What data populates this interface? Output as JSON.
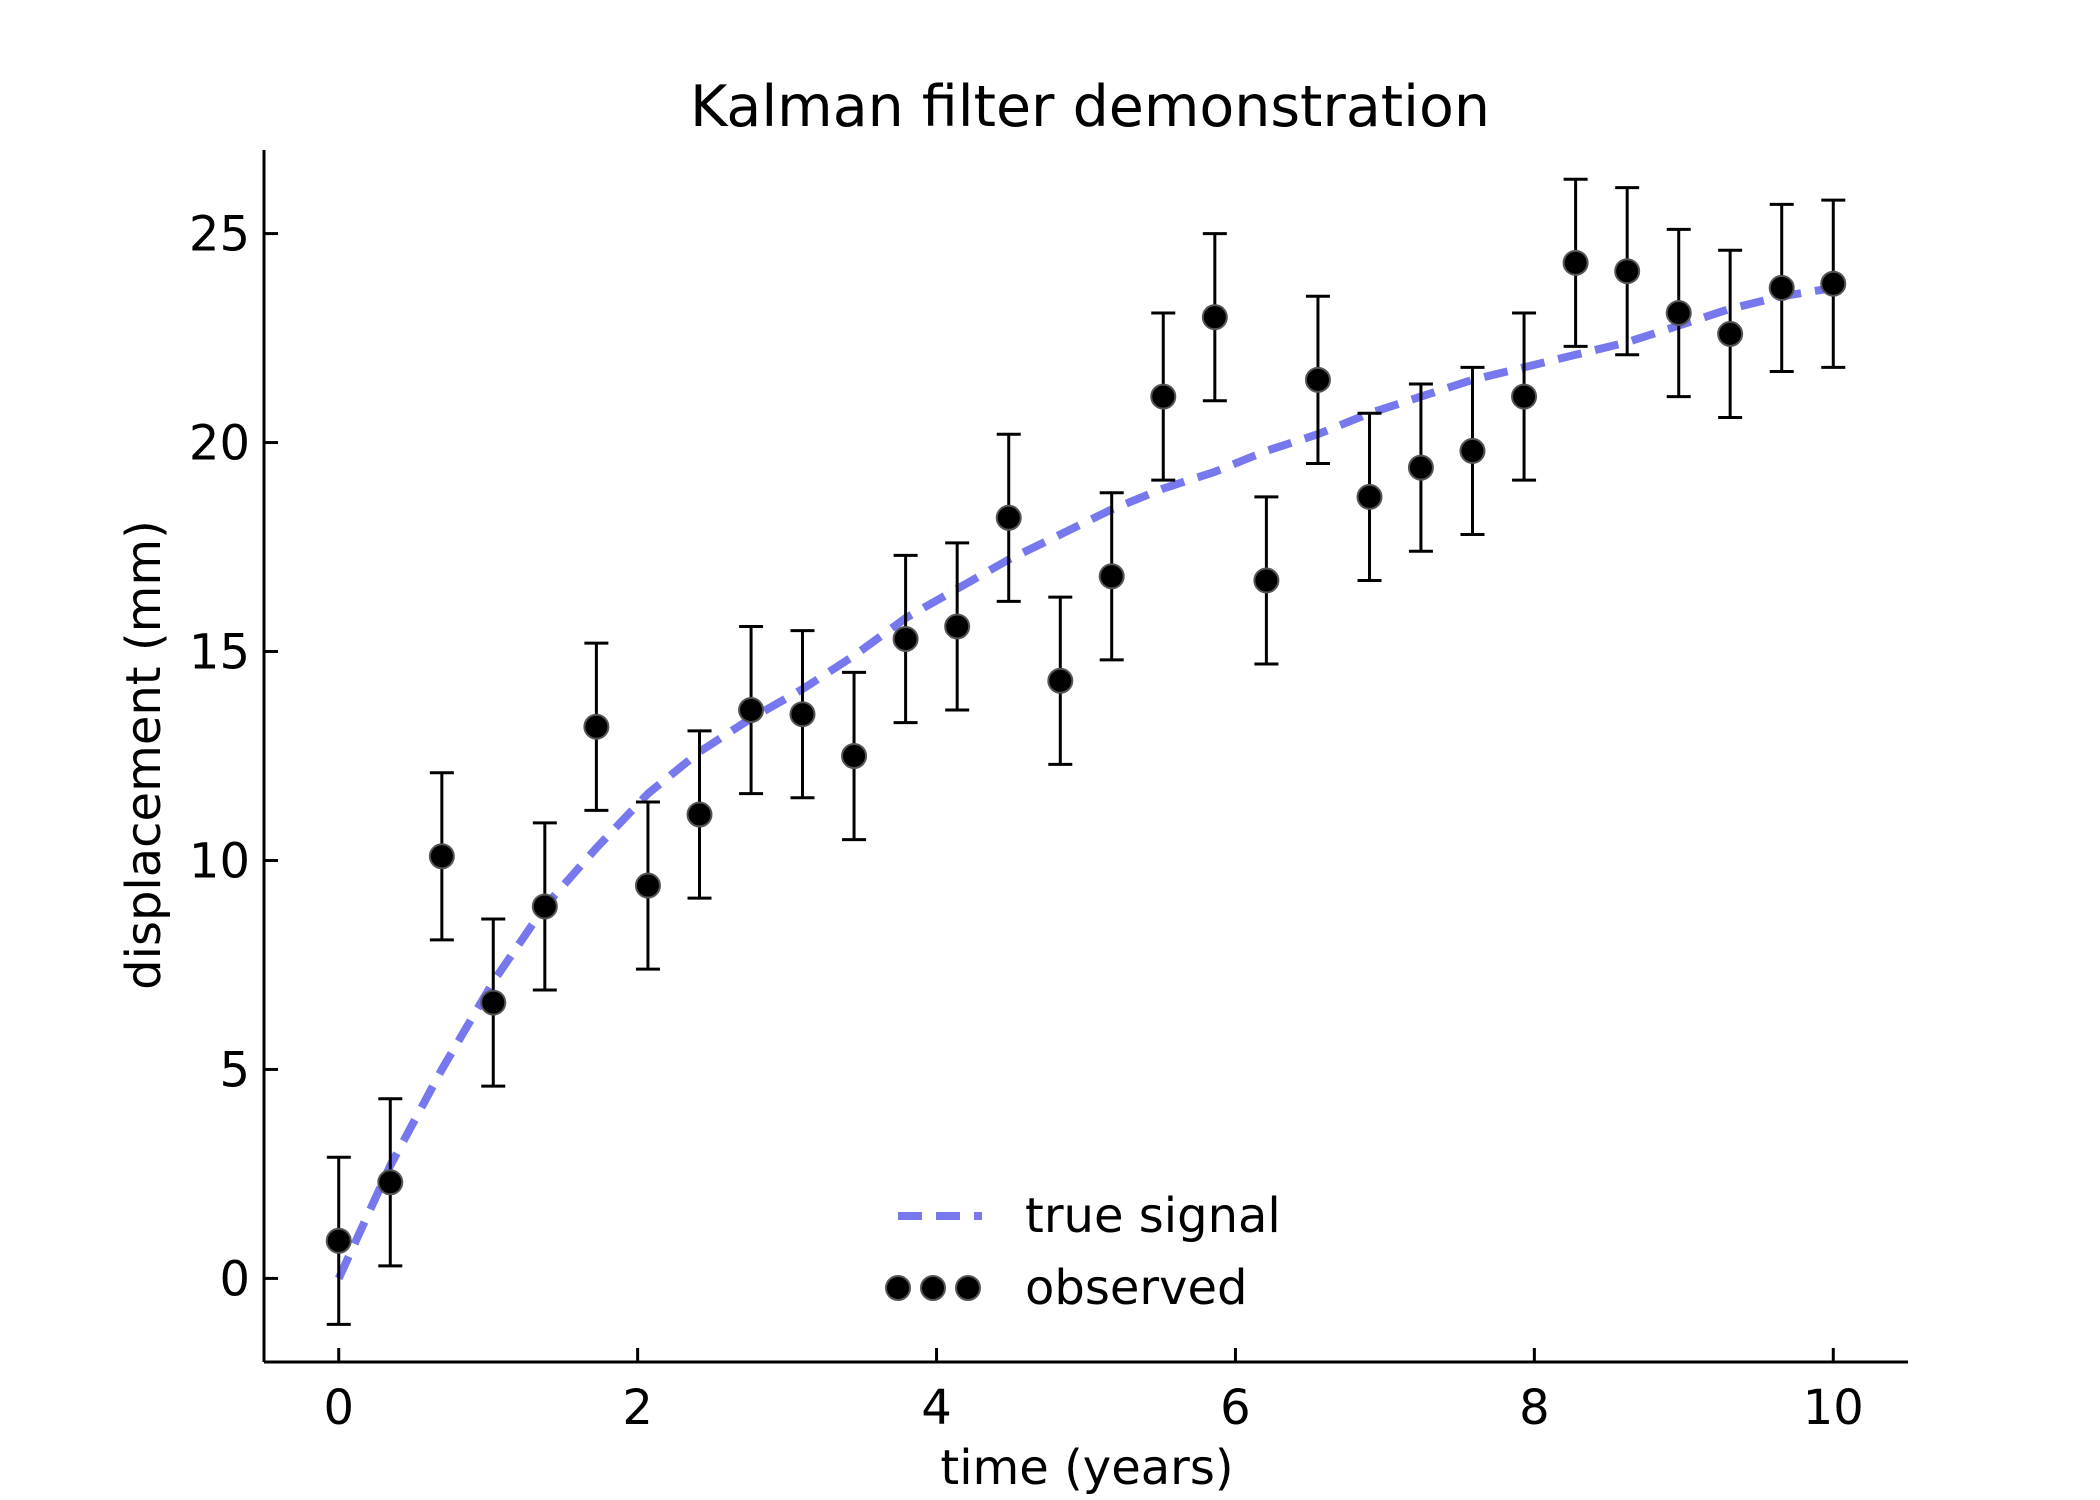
{
  "chart_data": {
    "type": "scatter",
    "title": "Kalman filter demonstration",
    "xlabel": "time (years)",
    "ylabel": "displacement (mm)",
    "xlim": [
      -0.5,
      10.5
    ],
    "ylim": [
      -2,
      27
    ],
    "xticks": [
      0,
      2,
      4,
      6,
      8,
      10
    ],
    "yticks": [
      0,
      5,
      10,
      15,
      20,
      25
    ],
    "grid": false,
    "legend_placement": "lower-center",
    "series": [
      {
        "name": "true signal",
        "style": "dashed-line",
        "color": "#7777ee",
        "x": [
          0,
          0.345,
          0.69,
          1.034,
          1.379,
          1.724,
          2.069,
          2.414,
          2.759,
          3.103,
          3.448,
          3.793,
          4.138,
          4.483,
          4.828,
          5.172,
          5.517,
          5.862,
          6.207,
          6.552,
          6.897,
          7.241,
          7.586,
          7.931,
          8.276,
          8.621,
          8.966,
          9.31,
          9.655,
          10
        ],
        "y": [
          0,
          2.7,
          5.0,
          7.1,
          8.9,
          10.3,
          11.6,
          12.6,
          13.4,
          14.1,
          14.9,
          15.8,
          16.5,
          17.2,
          17.8,
          18.4,
          18.9,
          19.3,
          19.8,
          20.2,
          20.7,
          21.1,
          21.5,
          21.8,
          22.1,
          22.4,
          22.8,
          23.2,
          23.5,
          23.7
        ]
      },
      {
        "name": "observed",
        "style": "markers-with-errorbars",
        "color": "#000000",
        "error": 2,
        "x": [
          0,
          0.345,
          0.69,
          1.034,
          1.379,
          1.724,
          2.069,
          2.414,
          2.759,
          3.103,
          3.448,
          3.793,
          4.138,
          4.483,
          4.828,
          5.172,
          5.517,
          5.862,
          6.207,
          6.552,
          6.897,
          7.241,
          7.586,
          7.931,
          8.276,
          8.621,
          8.966,
          9.31,
          9.655,
          10
        ],
        "y": [
          0.9,
          2.3,
          10.1,
          6.6,
          8.9,
          13.2,
          9.4,
          11.1,
          13.6,
          13.5,
          12.5,
          15.3,
          15.6,
          18.2,
          14.3,
          16.8,
          21.1,
          23.0,
          16.7,
          21.5,
          18.7,
          19.4,
          19.8,
          21.1,
          24.3,
          24.1,
          23.1,
          22.6,
          23.7,
          23.8
        ]
      }
    ]
  }
}
